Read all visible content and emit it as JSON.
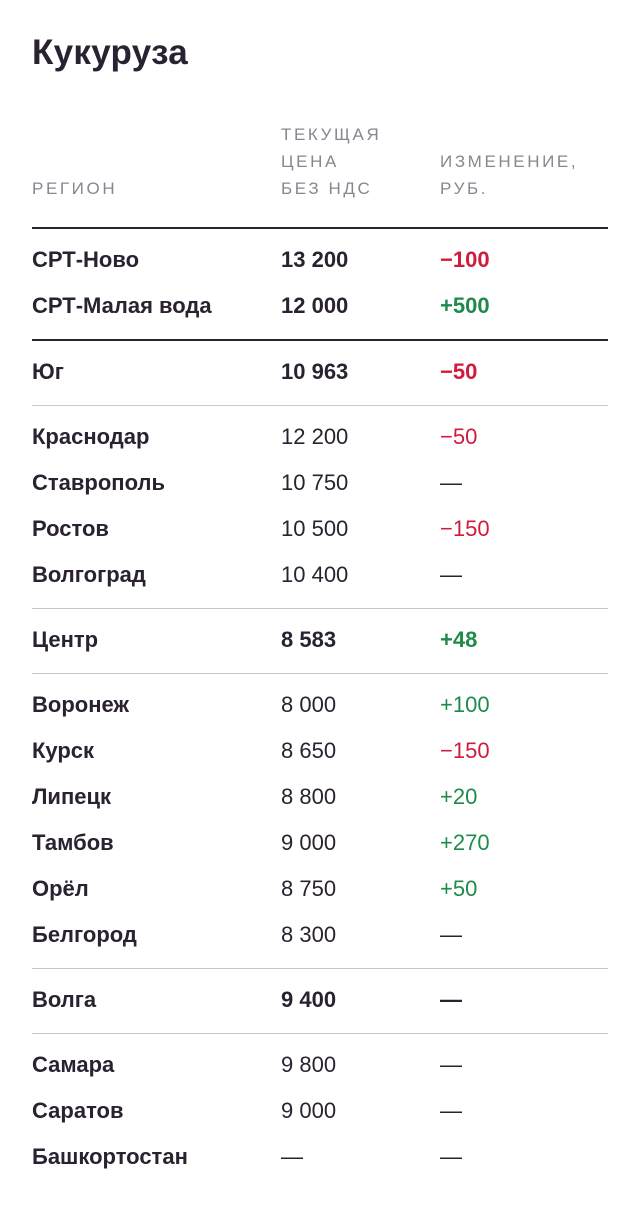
{
  "title": "Кукуруза",
  "columns": {
    "region": "РЕГИОН",
    "price_lines": [
      "ТЕКУЩАЯ",
      "ЦЕНА",
      "БЕЗ НДС"
    ],
    "change_lines": [
      "ИЗМЕНЕНИЕ,",
      "РУБ."
    ]
  },
  "groups": [
    {
      "rows": [
        {
          "region": "СРТ-Ново",
          "price": "13 200",
          "change": "−100",
          "trend": "neg",
          "bold": true
        },
        {
          "region": "СРТ-Малая вода",
          "price": "12 000",
          "change": "+500",
          "trend": "pos",
          "bold": true
        }
      ]
    },
    {
      "rows": [
        {
          "region": "Юг",
          "price": "10 963",
          "change": "−50",
          "trend": "neg",
          "bold": true
        }
      ]
    },
    {
      "rows": [
        {
          "region": "Краснодар",
          "price": "12 200",
          "change": "−50",
          "trend": "neg",
          "bold": false
        },
        {
          "region": "Ставрополь",
          "price": "10 750",
          "change": "—",
          "trend": "neu",
          "bold": false
        },
        {
          "region": "Ростов",
          "price": "10 500",
          "change": "−150",
          "trend": "neg",
          "bold": false
        },
        {
          "region": "Волгоград",
          "price": "10 400",
          "change": "—",
          "trend": "neu",
          "bold": false
        }
      ]
    },
    {
      "rows": [
        {
          "region": "Центр",
          "price": "8 583",
          "change": "+48",
          "trend": "pos",
          "bold": true
        }
      ]
    },
    {
      "rows": [
        {
          "region": "Воронеж",
          "price": "8 000",
          "change": "+100",
          "trend": "pos",
          "bold": false
        },
        {
          "region": "Курск",
          "price": "8 650",
          "change": "−150",
          "trend": "neg",
          "bold": false
        },
        {
          "region": "Липецк",
          "price": "8 800",
          "change": "+20",
          "trend": "pos",
          "bold": false
        },
        {
          "region": "Тамбов",
          "price": "9 000",
          "change": "+270",
          "trend": "pos",
          "bold": false
        },
        {
          "region": "Орёл",
          "price": "8 750",
          "change": "+50",
          "trend": "pos",
          "bold": false
        },
        {
          "region": "Белгород",
          "price": "8 300",
          "change": "—",
          "trend": "neu",
          "bold": false
        }
      ]
    },
    {
      "rows": [
        {
          "region": "Волга",
          "price": "9 400",
          "change": "—",
          "trend": "neu",
          "bold": true
        }
      ]
    },
    {
      "rows": [
        {
          "region": "Самара",
          "price": "9 800",
          "change": "—",
          "trend": "neu",
          "bold": false
        },
        {
          "region": "Саратов",
          "price": "9 000",
          "change": "—",
          "trend": "neu",
          "bold": false
        },
        {
          "region": "Башкортостан",
          "price": "—",
          "change": "—",
          "trend": "neu",
          "bold": false
        }
      ]
    }
  ],
  "colors": {
    "negative": "#d21a3c",
    "positive": "#1f8a4c",
    "text": "#2a2230",
    "header": "#8a8590"
  }
}
